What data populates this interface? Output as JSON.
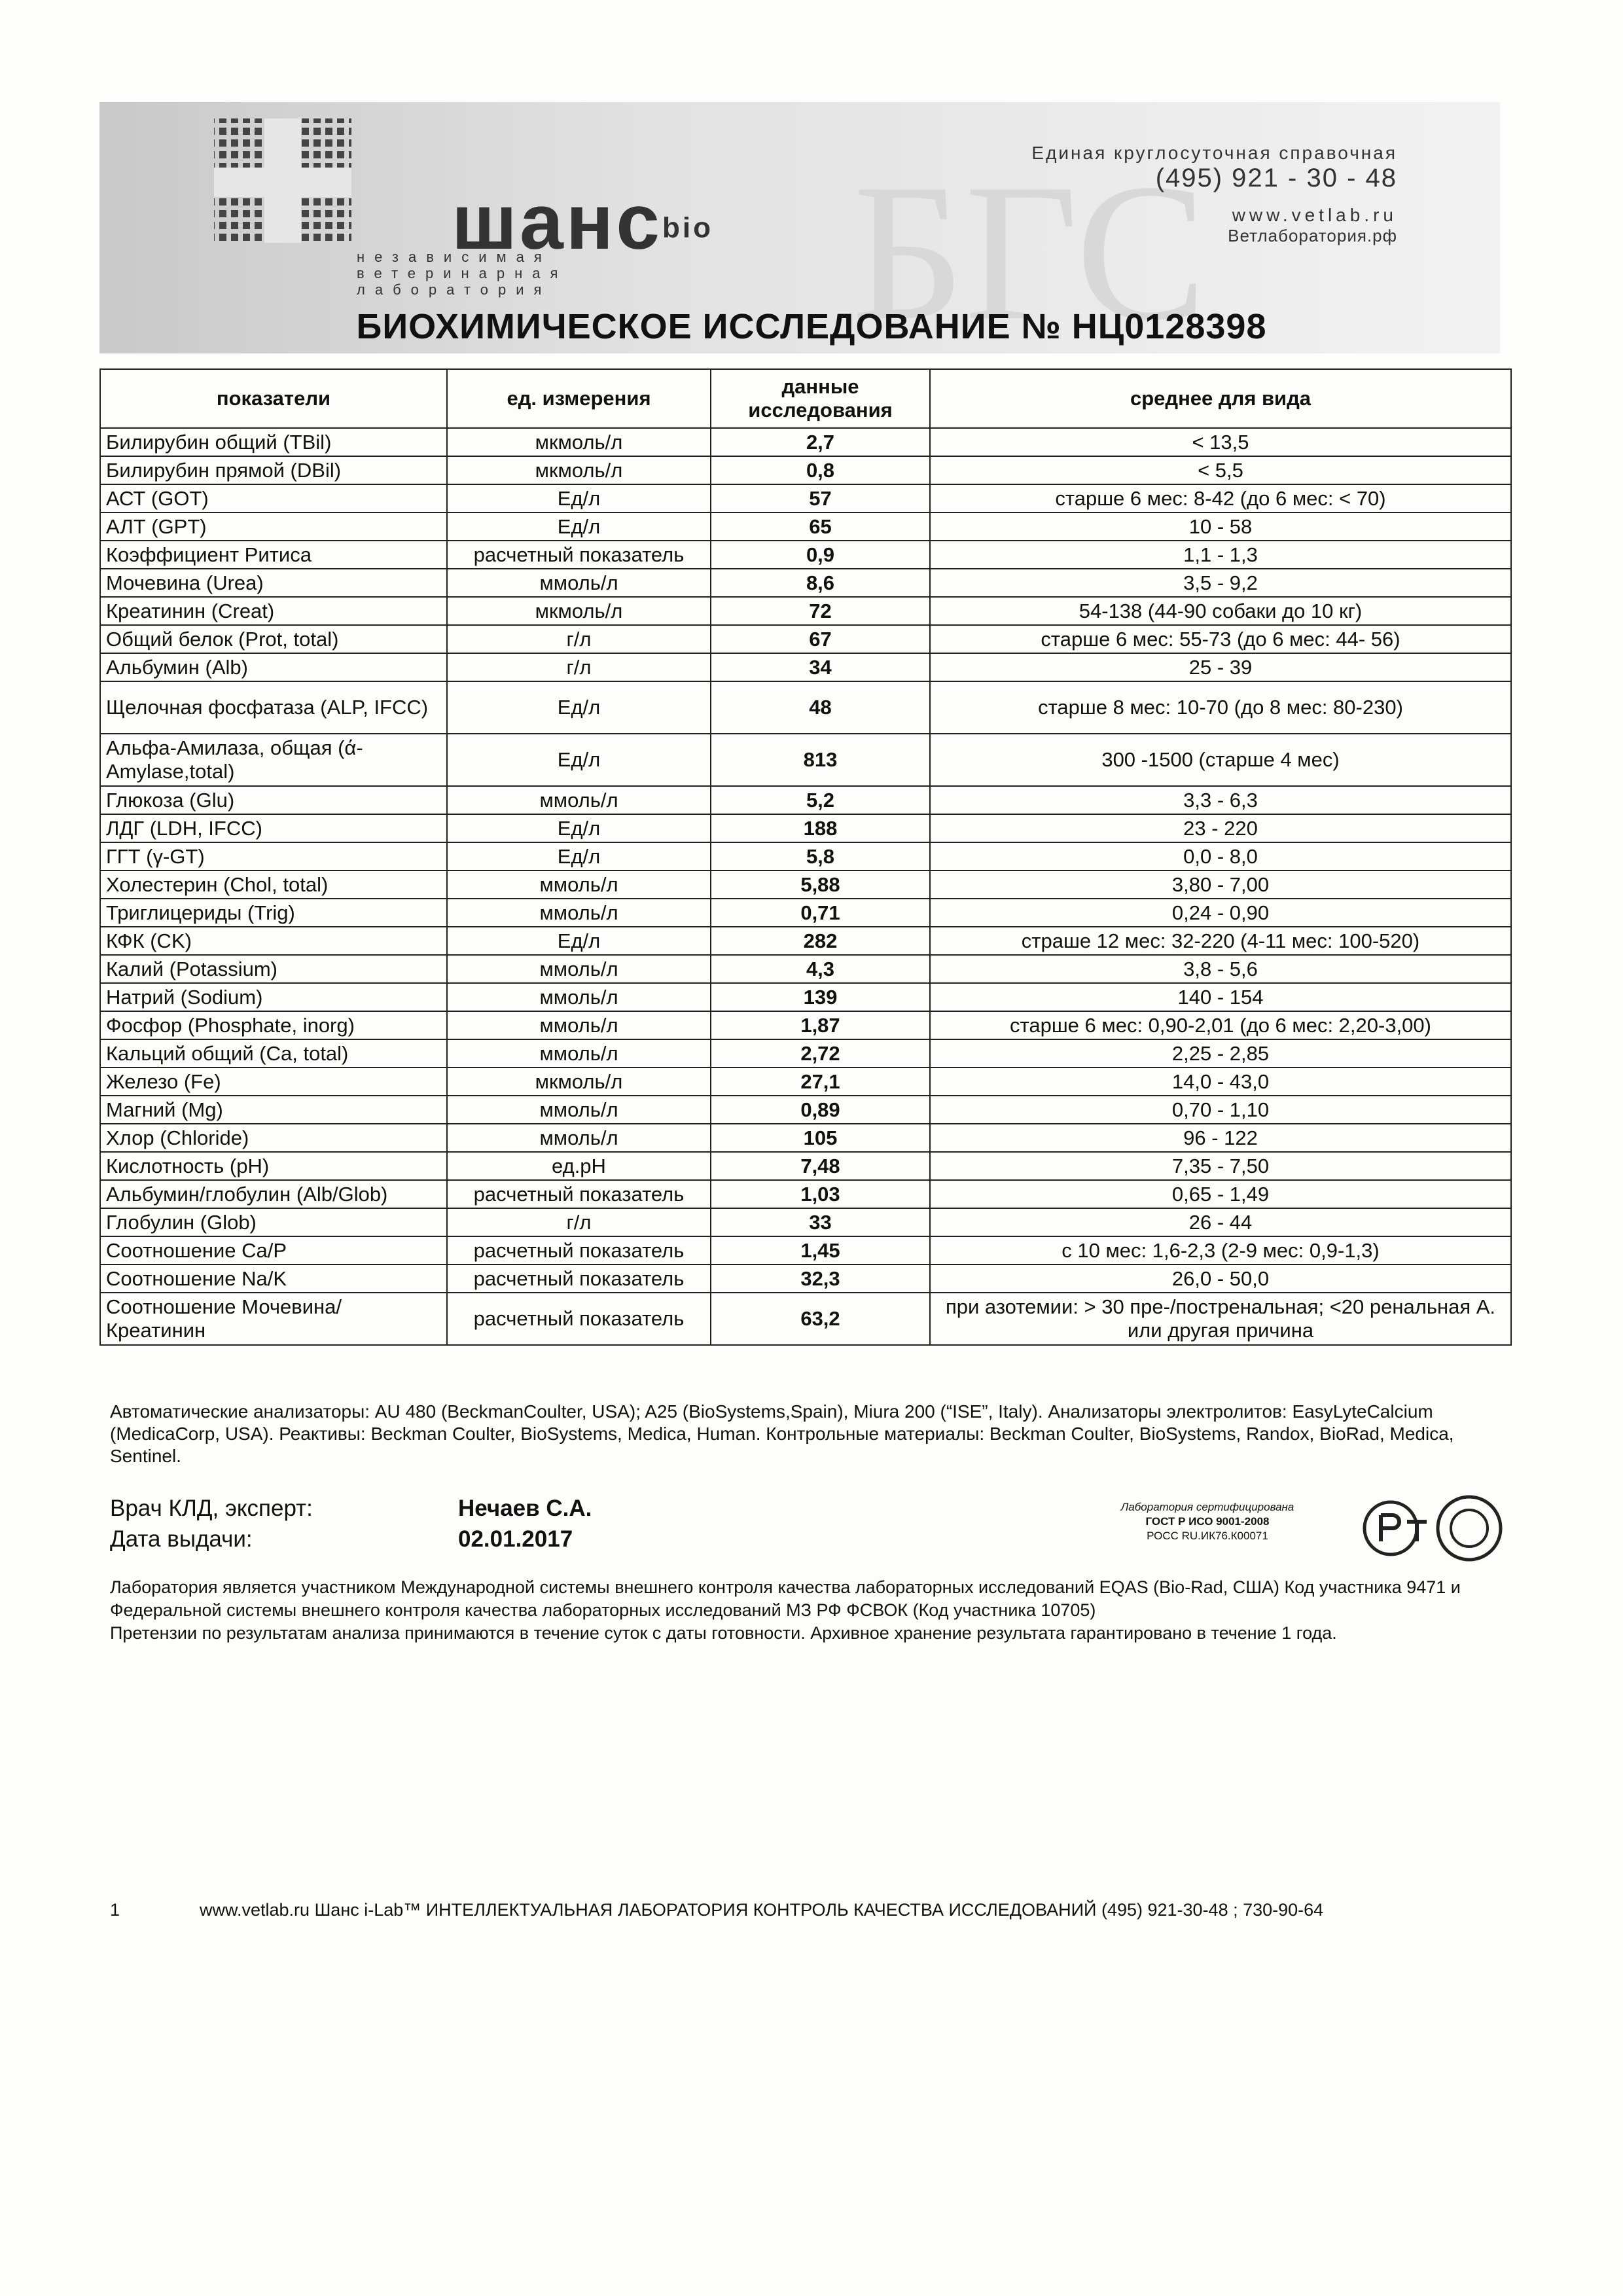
{
  "header": {
    "logo_text": "шанс",
    "logo_sub": "bio",
    "logo_tagline": [
      "независимая",
      "ветеринарная",
      "лаборатория"
    ],
    "helpline": "Единая круглосуточная справочная",
    "phone": "(495) 921 - 30 - 48",
    "site": "www.vetlab.ru",
    "site_ru": "Ветлаборатория.рф"
  },
  "title": "БИОХИМИЧЕСКОЕ ИССЛЕДОВАНИЕ № НЦ0128398",
  "table": {
    "columns": [
      "показатели",
      "ед. измерения",
      "данные исследования",
      "среднее для вида"
    ],
    "rows": [
      [
        "Билирубин общий (TBil)",
        "мкмоль/л",
        "2,7",
        "< 13,5"
      ],
      [
        "Билирубин прямой (DBil)",
        "мкмоль/л",
        "0,8",
        "< 5,5"
      ],
      [
        "АСТ (GOT)",
        "Ед/л",
        "57",
        "старше 6 мес: 8-42 (до 6 мес: < 70)"
      ],
      [
        "АЛТ (GPT)",
        "Ед/л",
        "65",
        "10 - 58"
      ],
      [
        "Коэффициент Ритиса",
        "расчетный показатель",
        "0,9",
        "1,1 - 1,3"
      ],
      [
        "Мочевина (Urea)",
        "ммоль/л",
        "8,6",
        "3,5 - 9,2"
      ],
      [
        "Креатинин (Creat)",
        "мкмоль/л",
        "72",
        "54-138 (44-90 собаки до 10 кг)"
      ],
      [
        "Общий белок (Prot, total)",
        "г/л",
        "67",
        "старше 6 мес: 55-73 (до 6 мес: 44- 56)"
      ],
      [
        "Альбумин (Alb)",
        "г/л",
        "34",
        "25 - 39"
      ],
      [
        "Щелочная фосфатаза (ALP, IFCC)",
        "Ед/л",
        "48",
        "старше 8 мес: 10-70 (до 8 мес: 80-230)"
      ],
      [
        "Альфа-Амилаза, общая (ά-Amylase,total)",
        "Ед/л",
        "813",
        "300 -1500 (старше 4 мес)"
      ],
      [
        "Глюкоза (Glu)",
        "ммоль/л",
        "5,2",
        "3,3 - 6,3"
      ],
      [
        "ЛДГ (LDH, IFCC)",
        "Ед/л",
        "188",
        "23 - 220"
      ],
      [
        "ГГТ (γ-GT)",
        "Ед/л",
        "5,8",
        "0,0 - 8,0"
      ],
      [
        "Холестерин (Chol, total)",
        "ммоль/л",
        "5,88",
        "3,80 - 7,00"
      ],
      [
        "Триглицериды (Trig)",
        "ммоль/л",
        "0,71",
        "0,24 - 0,90"
      ],
      [
        "КФК (CK)",
        "Ед/л",
        "282",
        "страше 12 мес: 32-220 (4-11 мес: 100-520)"
      ],
      [
        "Калий (Potassium)",
        "ммоль/л",
        "4,3",
        "3,8 - 5,6"
      ],
      [
        "Натрий (Sodium)",
        "ммоль/л",
        "139",
        "140 - 154"
      ],
      [
        "Фосфор (Phosphate, inorg)",
        "ммоль/л",
        "1,87",
        "старше 6 мес: 0,90-2,01 (до 6 мес: 2,20-3,00)"
      ],
      [
        "Кальций общий (Ca, total)",
        "ммоль/л",
        "2,72",
        "2,25 - 2,85"
      ],
      [
        "Железо (Fe)",
        "мкмоль/л",
        "27,1",
        "14,0 - 43,0"
      ],
      [
        "Магний (Mg)",
        "ммоль/л",
        "0,89",
        "0,70 - 1,10"
      ],
      [
        "Хлор (Chloride)",
        "ммоль/л",
        "105",
        "96 - 122"
      ],
      [
        "Кислотность (pH)",
        "ед.pH",
        "7,48",
        "7,35 - 7,50"
      ],
      [
        "Альбумин/глобулин (Alb/Glob)",
        "расчетный показатель",
        "1,03",
        "0,65 - 1,49"
      ],
      [
        "Глобулин (Glob)",
        "г/л",
        "33",
        "26 - 44"
      ],
      [
        "Соотношение Ca/P",
        "расчетный показатель",
        "1,45",
        "с 10 мес: 1,6-2,3 (2-9 мес: 0,9-1,3)"
      ],
      [
        "Соотношение Na/K",
        "расчетный показатель",
        "32,3",
        "26,0 - 50,0"
      ],
      [
        "Соотношение Мочевина/Креатинин",
        "расчетный показатель",
        "63,2",
        "при азотемии: > 30 пре-/постренальная; <20 ренальная А. или другая причина"
      ]
    ]
  },
  "notes": "Автоматические анализаторы: AU 480 (BeckmanCoulter, USA); A25 (BioSystems,Spain), Miura 200 (“ISE”, Italy). Анализаторы электролитов: EasyLyteCalcium (MedicaCorp, USA). Реактивы: Beckman Coulter, BioSystems, Medica, Human. Контрольные материалы: Beckman Coulter, BioSystems, Randox, BioRad, Medica, Sentinel.",
  "signatures": [
    {
      "label": "Врач КЛД, эксперт:",
      "value": "Нечаев С.А."
    },
    {
      "label": "Дата выдачи:",
      "value": "02.01.2017"
    }
  ],
  "certification": [
    "Лаборатория сертифицирована",
    "ГОСТ Р ИСО 9001-2008",
    "РОСС RU.ИК76.К00071"
  ],
  "disclaimer": [
    "Лаборатория является участником Международной системы внешнего контроля качества лабораторных исследований EQAS (Bio-Rad, США) Код участника 9471 и Федеральной системы внешнего контроля качества лабораторных исследований МЗ РФ ФСВОК (Код участника 10705)",
    "Претензии по результатам анализа принимаются в течение суток с даты готовности. Архивное хранение результата гарантировано в течение 1 года."
  ],
  "footer": {
    "page": "1",
    "text": "www.vetlab.ru Шанс i-Lab™ ИНТЕЛЛЕКТУАЛЬНАЯ ЛАБОРАТОРИЯ КОНТРОЛЬ КАЧЕСТВА ИССЛЕДОВАНИЙ (495) 921-30-48 ; 730-90-64"
  }
}
